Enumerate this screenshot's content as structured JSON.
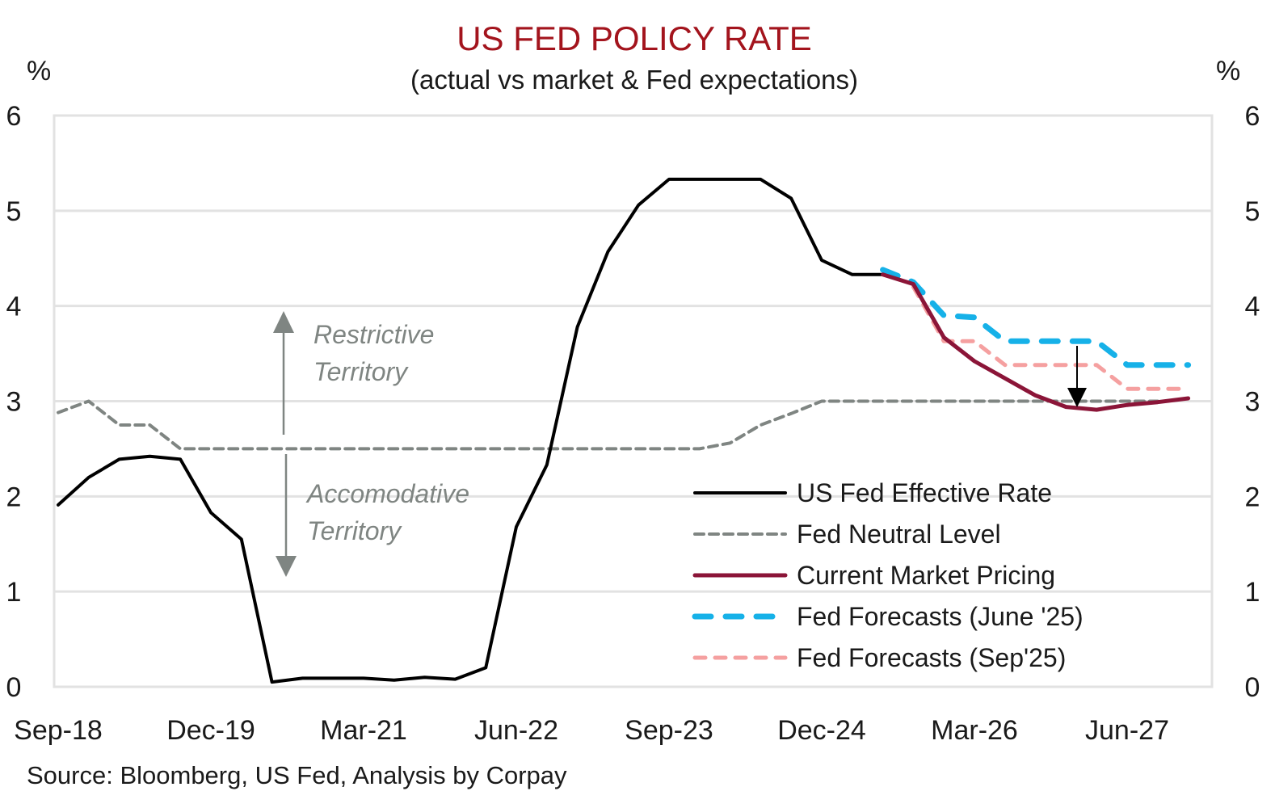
{
  "chart_data": {
    "type": "line",
    "title": "US FED POLICY RATE",
    "subtitle": "(actual vs market & Fed expectations)",
    "ylabel_left": "%",
    "ylabel_right": "%",
    "ylim": [
      0,
      6
    ],
    "yticks": [
      "0",
      "1",
      "2",
      "3",
      "4",
      "5",
      "6"
    ],
    "x_tick_labels": [
      "Sep-18",
      "Dec-19",
      "Mar-21",
      "Jun-22",
      "Sep-23",
      "Dec-24",
      "Mar-26",
      "Jun-27"
    ],
    "x_tick_index": [
      0,
      5,
      10,
      15,
      20,
      25,
      30,
      35
    ],
    "x_count": 37,
    "grid": true,
    "legend_position": "bottom-right",
    "source": "Source: Bloomberg, US Fed, Analysis by Corpay",
    "annotations": {
      "restrictive": [
        "Restrictive",
        "Territory"
      ],
      "accommodative": [
        "Accomodative",
        "Territory"
      ]
    },
    "series": [
      {
        "name": "US Fed Effective Rate",
        "color": "#000000",
        "style": "solid",
        "start_index": 0,
        "values": [
          1.91,
          2.2,
          2.39,
          2.42,
          2.39,
          1.83,
          1.55,
          0.05,
          0.09,
          0.09,
          0.09,
          0.07,
          0.1,
          0.08,
          0.2,
          1.68,
          2.33,
          3.78,
          4.57,
          5.06,
          5.33,
          5.33,
          5.33,
          5.33,
          5.13,
          4.48,
          4.33,
          4.33
        ]
      },
      {
        "name": "Fed Neutral Level",
        "color": "#7f8582",
        "style": "dashed",
        "start_index": 0,
        "values": [
          2.88,
          3.0,
          2.75,
          2.75,
          2.5,
          2.5,
          2.5,
          2.5,
          2.5,
          2.5,
          2.5,
          2.5,
          2.5,
          2.5,
          2.5,
          2.5,
          2.5,
          2.5,
          2.5,
          2.5,
          2.5,
          2.5,
          2.56,
          2.75,
          2.87,
          3.0,
          3.0,
          3.0,
          3.0,
          3.0,
          3.0,
          3.0,
          3.0,
          3.0,
          3.0,
          3.0,
          3.0
        ]
      },
      {
        "name": "Current Market Pricing",
        "color": "#8b1538",
        "style": "solid",
        "start_index": 27,
        "values": [
          4.33,
          4.23,
          3.67,
          3.42,
          3.24,
          3.06,
          2.94,
          2.91,
          2.96,
          2.99,
          3.03
        ]
      },
      {
        "name": "Fed Forecasts (June '25)",
        "color": "#16b1e8",
        "style": "dashed-thick",
        "start_index": 27,
        "values": [
          4.38,
          4.25,
          3.9,
          3.88,
          3.63,
          3.63,
          3.63,
          3.63,
          3.38,
          3.38,
          3.38
        ]
      },
      {
        "name": "Fed Forecasts (Sep'25)",
        "color": "#f5a0a0",
        "style": "dashed",
        "start_index": 28,
        "values": [
          4.2,
          3.63,
          3.63,
          3.38,
          3.38,
          3.38,
          3.38,
          3.13,
          3.13,
          3.13
        ]
      }
    ]
  }
}
